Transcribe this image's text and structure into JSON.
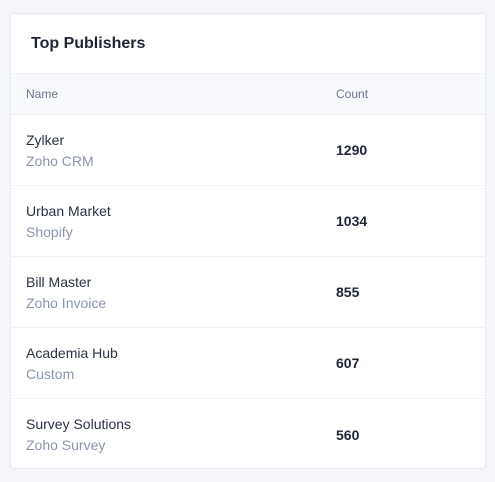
{
  "card": {
    "title": "Top Publishers"
  },
  "table": {
    "columns": [
      "Name",
      "Count"
    ],
    "rows": [
      {
        "name": "Zylker",
        "source": "Zoho CRM",
        "count": "1290"
      },
      {
        "name": "Urban Market",
        "source": "Shopify",
        "count": "1034"
      },
      {
        "name": "Bill Master",
        "source": "Zoho Invoice",
        "count": "855"
      },
      {
        "name": "Academia Hub",
        "source": "Custom",
        "count": "607"
      },
      {
        "name": "Survey Solutions",
        "source": "Zoho Survey",
        "count": "560"
      }
    ]
  }
}
